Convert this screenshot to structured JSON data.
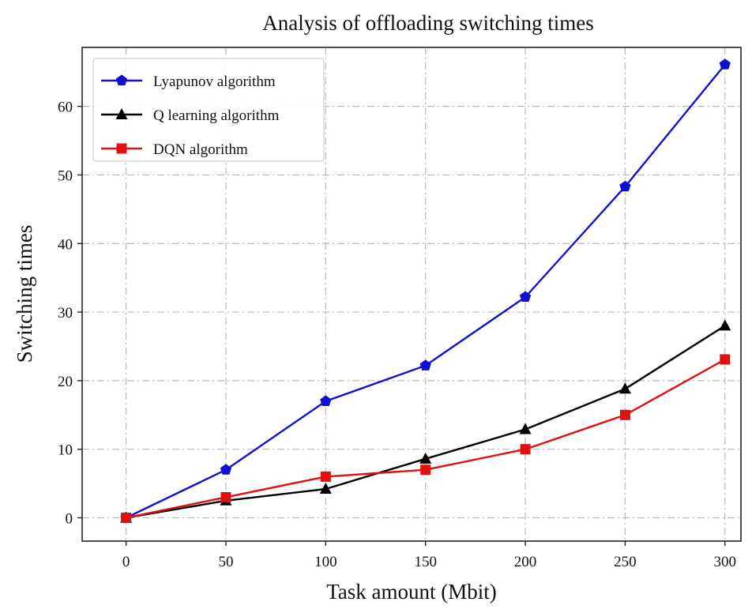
{
  "chart_data": {
    "type": "line",
    "title": "Analysis of offloading switching times",
    "xlabel": "Task amount (Mbit)",
    "ylabel": "Switching times",
    "x": [
      0,
      50,
      100,
      150,
      200,
      250,
      300
    ],
    "x_ticks": [
      "0",
      "50",
      "100",
      "150",
      "200",
      "250",
      "300"
    ],
    "y_ticks": [
      "0",
      "10",
      "20",
      "30",
      "40",
      "50",
      "60"
    ],
    "xlim": [
      -22,
      308
    ],
    "ylim": [
      -3.4,
      68.6
    ],
    "grid": true,
    "legend_position": "top-left",
    "series": [
      {
        "name": "Lyapunov algorithm",
        "color": "#1010d0",
        "marker": "pentagon",
        "values": [
          0,
          7,
          17,
          22.2,
          32.2,
          48.3,
          66.1
        ]
      },
      {
        "name": "Q learning algorithm",
        "color": "#000000",
        "marker": "triangle",
        "values": [
          0,
          2.5,
          4.2,
          8.6,
          12.9,
          18.8,
          28
        ]
      },
      {
        "name": "DQN algorithm",
        "color": "#e01010",
        "marker": "square",
        "values": [
          0,
          3,
          6,
          7,
          10,
          15,
          23.1
        ]
      }
    ]
  }
}
